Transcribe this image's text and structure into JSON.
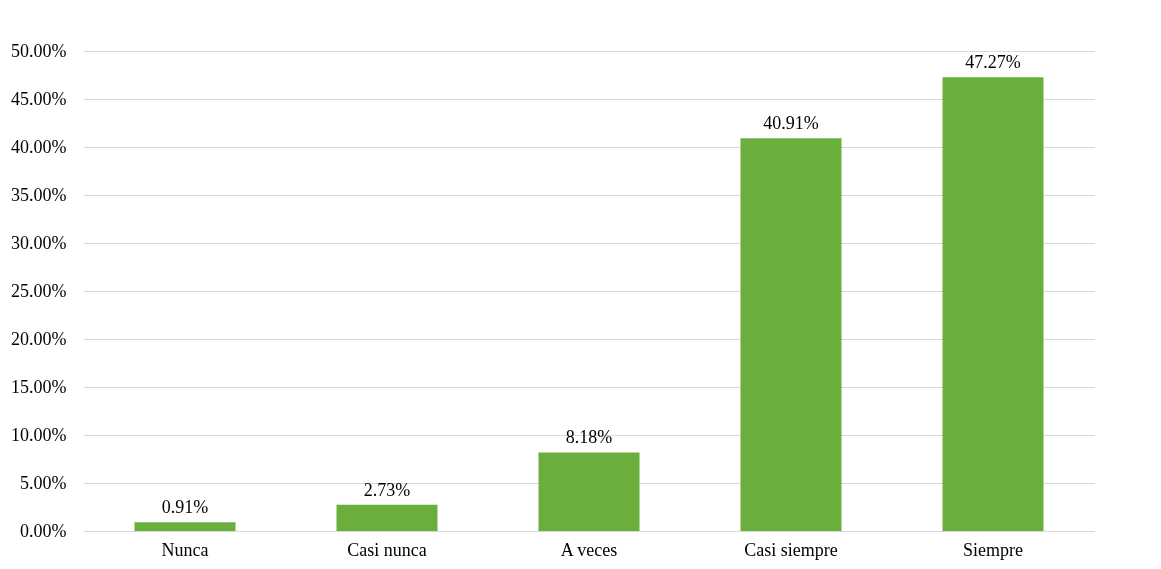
{
  "chart_data": {
    "type": "bar",
    "categories": [
      "Nunca",
      "Casi nunca",
      "A veces",
      "Casi siempre",
      "Siempre"
    ],
    "values": [
      0.91,
      2.73,
      8.18,
      40.91,
      47.27
    ],
    "value_labels": [
      "0.91%",
      "2.73%",
      "8.18%",
      "40.91%",
      "47.27%"
    ],
    "color": "#6aaf3d",
    "ylim": [
      0,
      50
    ],
    "yticks": [
      {
        "value": 0,
        "label": "0.00%"
      },
      {
        "value": 5,
        "label": "5.00%"
      },
      {
        "value": 10,
        "label": "10.00%"
      },
      {
        "value": 15,
        "label": "15.00%"
      },
      {
        "value": 20,
        "label": "20.00%"
      },
      {
        "value": 25,
        "label": "25.00%"
      },
      {
        "value": 30,
        "label": "30.00%"
      },
      {
        "value": 35,
        "label": "35.00%"
      },
      {
        "value": 40,
        "label": "40.00%"
      },
      {
        "value": 45,
        "label": "45.00%"
      },
      {
        "value": 50,
        "label": "50.00%"
      }
    ],
    "grid": "y"
  }
}
